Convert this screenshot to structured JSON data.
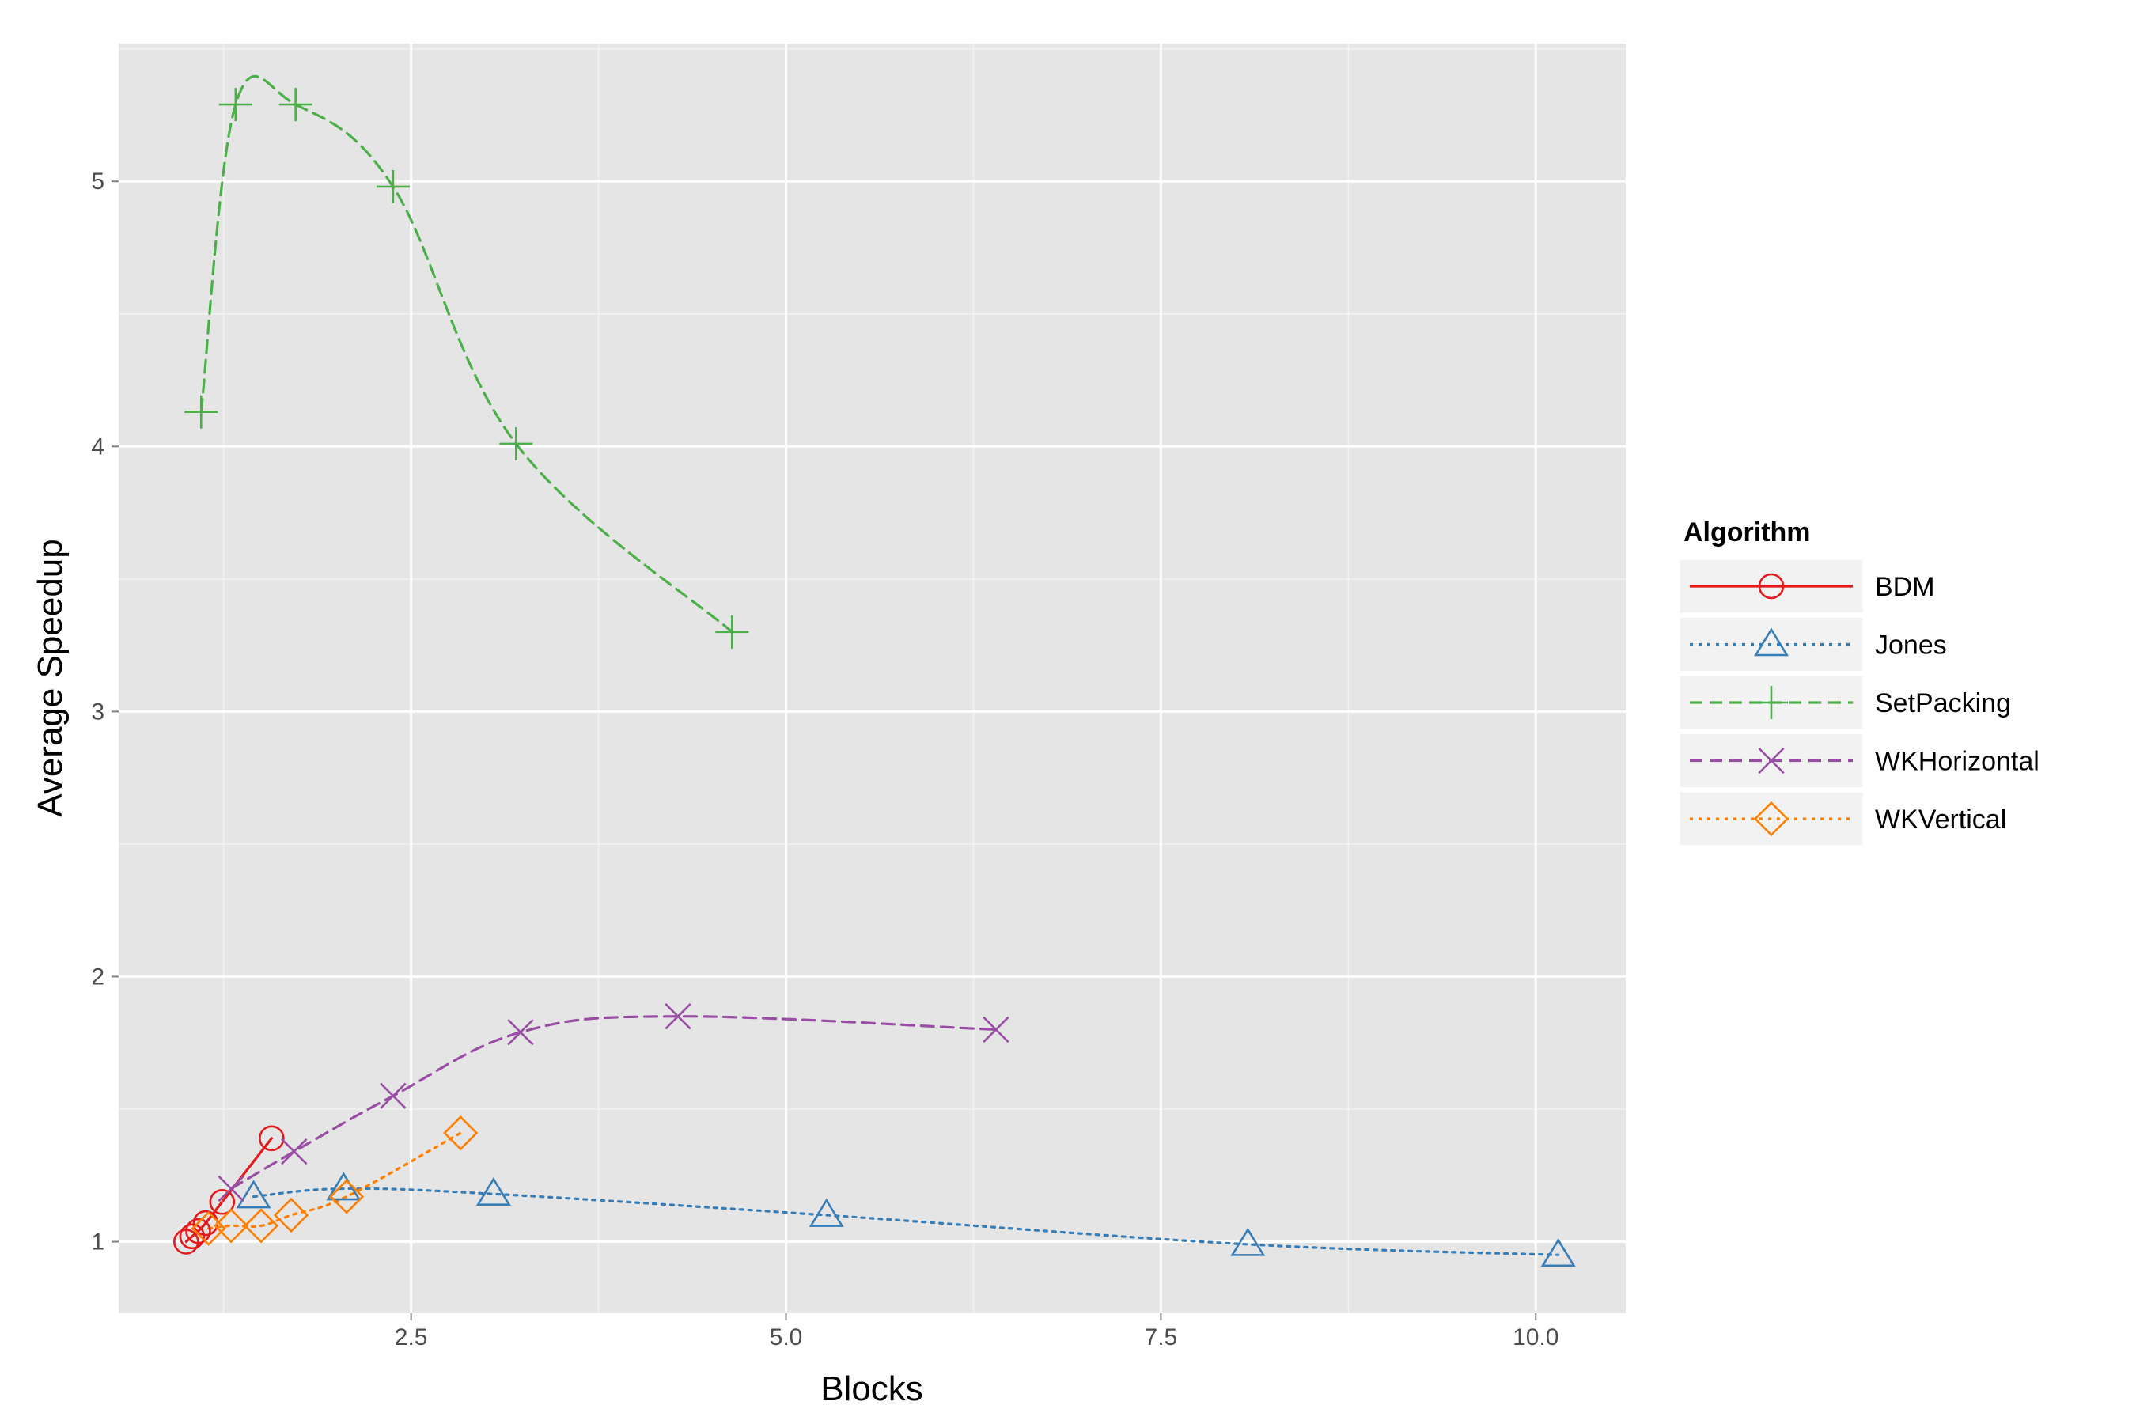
{
  "chart_data": {
    "type": "line",
    "title": "",
    "xlabel": "Blocks",
    "ylabel": "Average Speedup",
    "xlim": [
      0.55,
      10.6
    ],
    "ylim": [
      0.73,
      5.52
    ],
    "x_ticks": [
      2.5,
      5.0,
      7.5,
      10.0
    ],
    "x_tick_labels": [
      "2.5",
      "5.0",
      "7.5",
      "10.0"
    ],
    "y_ticks": [
      1,
      2,
      3,
      4,
      5
    ],
    "y_tick_labels": [
      "1",
      "2",
      "3",
      "4",
      "5"
    ],
    "grid": true,
    "legend": {
      "title": "Algorithm",
      "position": "right"
    },
    "series": [
      {
        "name": "BDM",
        "color": "#e41a1c",
        "line_style": "solid",
        "marker": "circle",
        "x": [
          1.0,
          1.04,
          1.08,
          1.13,
          1.24,
          1.57
        ],
        "y": [
          1.0,
          1.02,
          1.04,
          1.07,
          1.15,
          1.39
        ]
      },
      {
        "name": "Jones",
        "color": "#377eb8",
        "line_style": "dotted",
        "marker": "triangle",
        "x": [
          1.45,
          2.05,
          3.05,
          5.27,
          8.08,
          10.15
        ],
        "y": [
          1.17,
          1.2,
          1.18,
          1.1,
          0.99,
          0.95
        ]
      },
      {
        "name": "SetPacking",
        "color": "#4daf4a",
        "line_style": "dashed",
        "marker": "plus",
        "x": [
          1.1,
          1.33,
          1.73,
          2.38,
          3.2,
          4.64
        ],
        "y": [
          4.13,
          5.29,
          5.29,
          4.98,
          4.01,
          3.3
        ]
      },
      {
        "name": "WKHorizontal",
        "color": "#984ea3",
        "line_style": "dashed",
        "marker": "x",
        "x": [
          1.3,
          1.72,
          2.38,
          3.23,
          4.28,
          6.4
        ],
        "y": [
          1.2,
          1.34,
          1.55,
          1.79,
          1.85,
          1.8
        ]
      },
      {
        "name": "WKVertical",
        "color": "#ff7f00",
        "line_style": "dotted",
        "marker": "diamond",
        "x": [
          1.15,
          1.3,
          1.5,
          1.7,
          2.07,
          2.83
        ],
        "y": [
          1.05,
          1.06,
          1.06,
          1.1,
          1.17,
          1.41
        ]
      }
    ]
  }
}
